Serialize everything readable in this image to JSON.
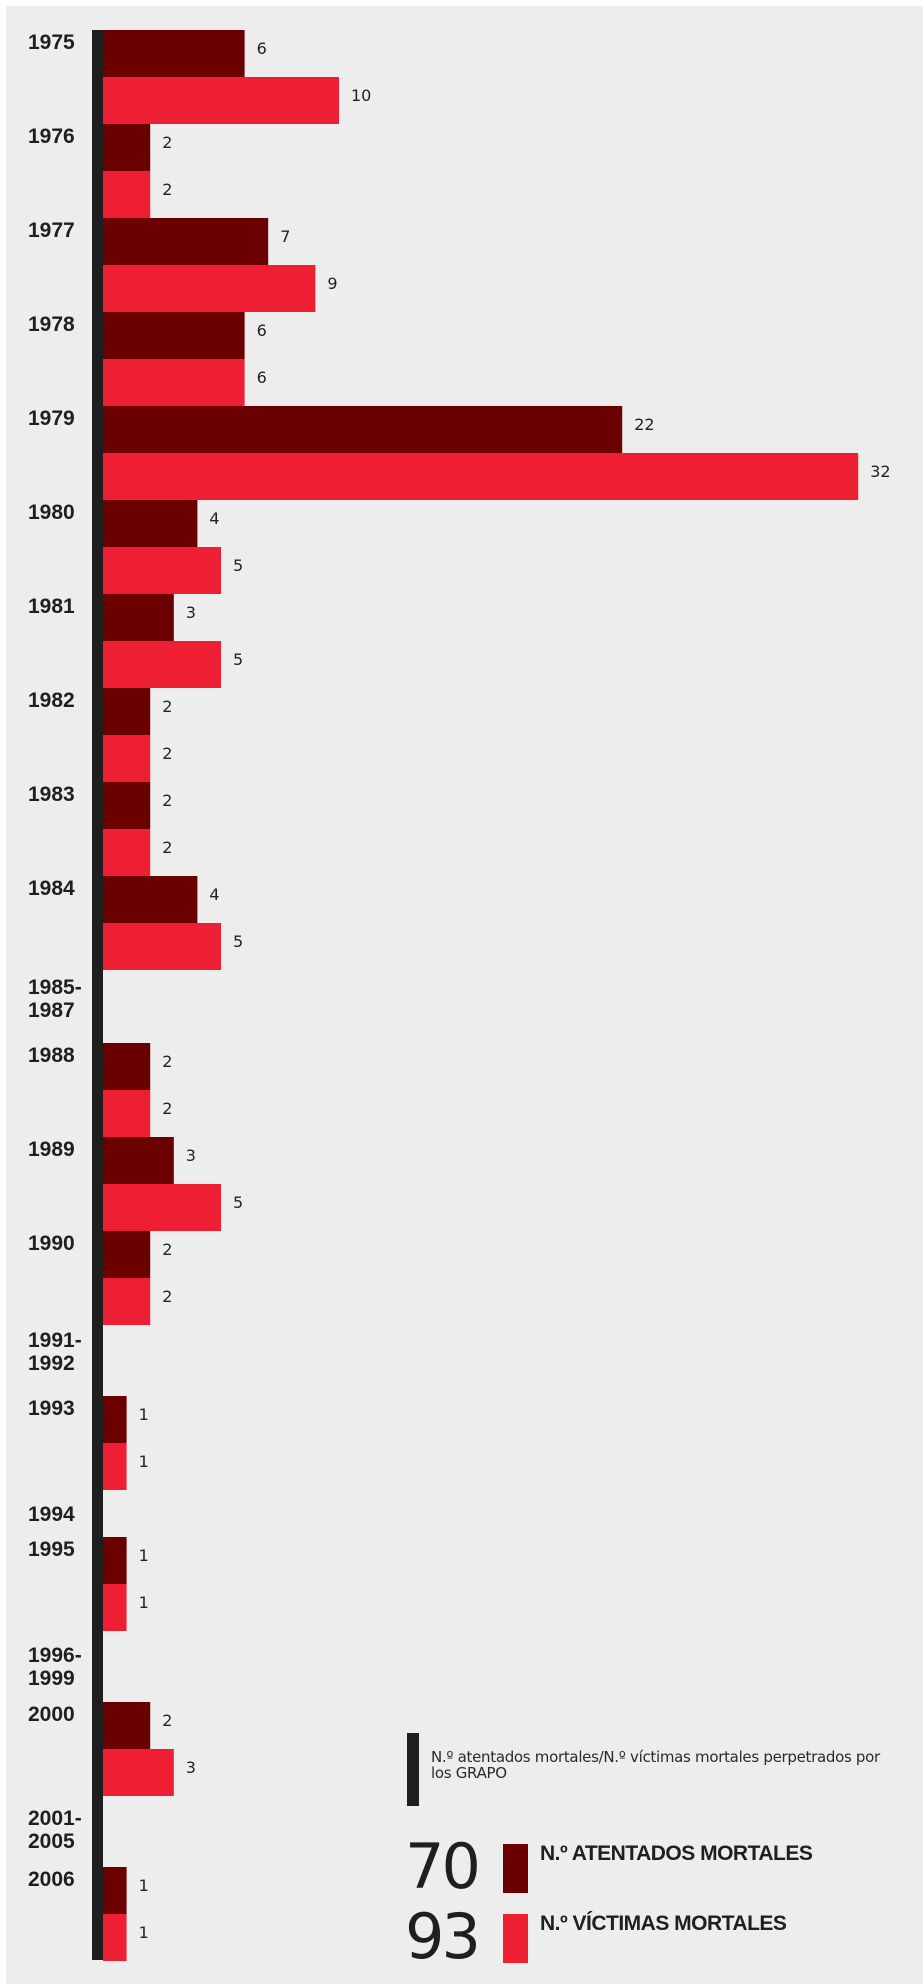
{
  "colors": {
    "attacks": "#6a0000",
    "victims": "#ef1f33",
    "axis": "#1f1f1f",
    "background": "#ededed"
  },
  "chart_data": {
    "type": "bar",
    "orientation": "horizontal",
    "title": "",
    "categories": [
      {
        "label": [
          "1975"
        ],
        "attacks": 6,
        "victims": 10
      },
      {
        "label": [
          "1976"
        ],
        "attacks": 2,
        "victims": 2
      },
      {
        "label": [
          "1977"
        ],
        "attacks": 7,
        "victims": 9
      },
      {
        "label": [
          "1978"
        ],
        "attacks": 6,
        "victims": 6
      },
      {
        "label": [
          "1979"
        ],
        "attacks": 22,
        "victims": 32
      },
      {
        "label": [
          "1980"
        ],
        "attacks": 4,
        "victims": 5
      },
      {
        "label": [
          "1981"
        ],
        "attacks": 3,
        "victims": 5
      },
      {
        "label": [
          "1982"
        ],
        "attacks": 2,
        "victims": 2
      },
      {
        "label": [
          "1983"
        ],
        "attacks": 2,
        "victims": 2
      },
      {
        "label": [
          "1984"
        ],
        "attacks": 4,
        "victims": 5
      },
      {
        "label": [
          "1985-",
          "1987"
        ],
        "attacks": null,
        "victims": null
      },
      {
        "label": [
          "1988"
        ],
        "attacks": 2,
        "victims": 2
      },
      {
        "label": [
          "1989"
        ],
        "attacks": 3,
        "victims": 5
      },
      {
        "label": [
          "1990"
        ],
        "attacks": 2,
        "victims": 2
      },
      {
        "label": [
          "1991-",
          "1992"
        ],
        "attacks": null,
        "victims": null
      },
      {
        "label": [
          "1993"
        ],
        "attacks": 1,
        "victims": 1
      },
      {
        "label": [
          "1994"
        ],
        "attacks": null,
        "victims": null
      },
      {
        "label": [
          "1995"
        ],
        "attacks": 1,
        "victims": 1
      },
      {
        "label": [
          "1996-",
          "1999"
        ],
        "attacks": null,
        "victims": null
      },
      {
        "label": [
          "2000"
        ],
        "attacks": 2,
        "victims": 3
      },
      {
        "label": [
          "2001-",
          "2005"
        ],
        "attacks": null,
        "victims": null
      },
      {
        "label": [
          "2006"
        ],
        "attacks": 1,
        "victims": 1
      }
    ],
    "series": [
      {
        "name": "N.º ATENTADOS MORTALES",
        "key": "attacks",
        "color": "#6a0000"
      },
      {
        "name": "N.º VÍCTIMAS MORTALES",
        "key": "victims",
        "color": "#ef1f33"
      }
    ],
    "xlim": [
      0,
      32
    ],
    "grid": false,
    "legend_position": "bottom-right"
  },
  "legend": {
    "note": "N.º atentados mortales/N.º víctimas mortales perpetrados por los GRAPO",
    "items": [
      {
        "total": "70",
        "label": "N.º ATENTADOS MORTALES"
      },
      {
        "total": "93",
        "label": "N.º VÍCTIMAS MORTALES"
      }
    ]
  }
}
